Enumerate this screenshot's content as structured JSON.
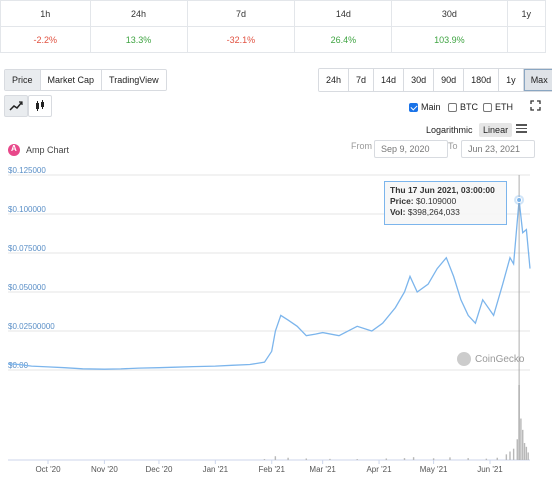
{
  "periods": [
    {
      "label": "1h",
      "value": "-2.2%",
      "trend": "neg"
    },
    {
      "label": "24h",
      "value": "13.3%",
      "trend": "pos"
    },
    {
      "label": "7d",
      "value": "-32.1%",
      "trend": "neg"
    },
    {
      "label": "14d",
      "value": "26.4%",
      "trend": "pos"
    },
    {
      "label": "30d",
      "value": "103.9%",
      "trend": "pos"
    },
    {
      "label": "1y",
      "value": "",
      "trend": ""
    }
  ],
  "chart_tabs": [
    "Price",
    "Market Cap",
    "TradingView"
  ],
  "ranges": [
    "24h",
    "7d",
    "14d",
    "30d",
    "90d",
    "180d",
    "1y",
    "Max"
  ],
  "selected_range": "Max",
  "checks": [
    {
      "label": "Main",
      "checked": true
    },
    {
      "label": "BTC",
      "checked": false
    },
    {
      "label": "ETH",
      "checked": false
    }
  ],
  "scale": {
    "log": "Logarithmic",
    "linear": "Linear"
  },
  "chart_title": "Amp Chart",
  "from_label": "From",
  "from_date": "Sep 9, 2020",
  "to_label": "To",
  "to_date": "Jun 23, 2021",
  "tooltip": {
    "date": "Thu 17 Jun 2021, 03:00:00",
    "price_label": "Price:",
    "price": "$0.109000",
    "vol_label": "Vol:",
    "vol": "$398,264,033"
  },
  "watermark": "CoinGecko",
  "colors": {
    "line": "#7cb5ec",
    "neg": "#e15241",
    "pos": "#3fa442"
  },
  "chart_data": {
    "type": "line",
    "title": "Amp Chart",
    "yticks": [
      "$0.125000",
      "$0.100000",
      "$0.075000",
      "$0.050000",
      "$0.02500000",
      "$0.00"
    ],
    "ylim": [
      0,
      0.125
    ],
    "xticks": [
      "Oct '20",
      "Nov '20",
      "Dec '20",
      "Jan '21",
      "Feb '21",
      "Mar '21",
      "Apr '21",
      "May '21",
      "Jun '21"
    ],
    "xtick_dates": [
      "2020-10-01",
      "2020-11-01",
      "2020-12-01",
      "2021-01-01",
      "2021-02-01",
      "2021-03-01",
      "2021-04-01",
      "2021-05-01",
      "2021-06-01"
    ],
    "xlim": [
      "2020-09-09",
      "2021-06-23"
    ],
    "series": [
      {
        "x": [
          "2020-09-09",
          "2020-09-15",
          "2020-09-22",
          "2020-10-01",
          "2020-10-10",
          "2020-10-20",
          "2020-11-01",
          "2020-11-10",
          "2020-11-20",
          "2020-12-01",
          "2020-12-10",
          "2020-12-20",
          "2021-01-01",
          "2021-01-10",
          "2021-01-20",
          "2021-01-28",
          "2021-02-01",
          "2021-02-03",
          "2021-02-06",
          "2021-02-10",
          "2021-02-15",
          "2021-02-20",
          "2021-02-25",
          "2021-03-01",
          "2021-03-10",
          "2021-03-20",
          "2021-03-28",
          "2021-04-03",
          "2021-04-10",
          "2021-04-15",
          "2021-04-18",
          "2021-04-22",
          "2021-04-28",
          "2021-05-03",
          "2021-05-08",
          "2021-05-12",
          "2021-05-16",
          "2021-05-20",
          "2021-05-24",
          "2021-05-28",
          "2021-06-03",
          "2021-06-08",
          "2021-06-12",
          "2021-06-14",
          "2021-06-17",
          "2021-06-19",
          "2021-06-21",
          "2021-06-23"
        ],
        "y": [
          0.004,
          0.0035,
          0.0025,
          0.002,
          0.0015,
          0.0008,
          0.0005,
          0.0007,
          0.0012,
          0.0015,
          0.0018,
          0.0022,
          0.0025,
          0.003,
          0.0035,
          0.005,
          0.012,
          0.025,
          0.035,
          0.032,
          0.028,
          0.022,
          0.023,
          0.024,
          0.022,
          0.028,
          0.025,
          0.03,
          0.04,
          0.05,
          0.06,
          0.05,
          0.055,
          0.065,
          0.072,
          0.06,
          0.045,
          0.035,
          0.03,
          0.045,
          0.035,
          0.055,
          0.072,
          0.068,
          0.109,
          0.088,
          0.09,
          0.065
        ]
      }
    ],
    "volume": {
      "x": [
        "2021-01-28",
        "2021-02-03",
        "2021-02-10",
        "2021-02-20",
        "2021-03-05",
        "2021-03-20",
        "2021-04-05",
        "2021-04-15",
        "2021-04-20",
        "2021-05-01",
        "2021-05-10",
        "2021-05-20",
        "2021-05-30",
        "2021-06-05",
        "2021-06-10",
        "2021-06-12",
        "2021-06-14",
        "2021-06-16",
        "2021-06-17",
        "2021-06-18",
        "2021-06-19",
        "2021-06-20",
        "2021-06-21",
        "2021-06-22"
      ],
      "y": [
        5,
        20,
        12,
        8,
        6,
        5,
        8,
        10,
        15,
        9,
        14,
        10,
        7,
        12,
        30,
        45,
        60,
        110,
        398,
        220,
        160,
        90,
        70,
        40
      ]
    }
  }
}
